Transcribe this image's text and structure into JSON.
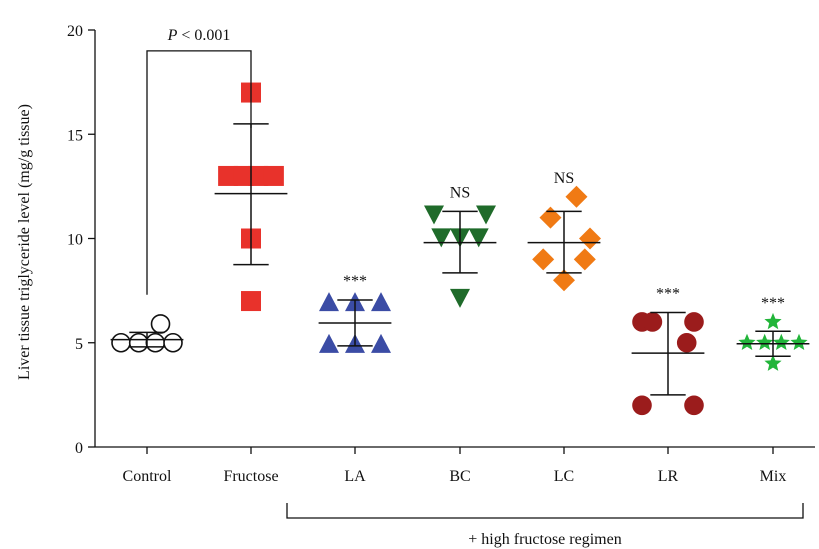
{
  "chart_data": {
    "type": "scatter",
    "ylabel": "Liver tissue triglyceride level (mg/g tissue)",
    "xlabel": "",
    "ylim": [
      0,
      20
    ],
    "yticks": [
      0,
      5,
      10,
      15,
      20
    ],
    "categories": [
      "Control",
      "Fructose",
      "LA",
      "BC",
      "LC",
      "LR",
      "Mix"
    ],
    "groups": [
      {
        "name": "Control",
        "marker": "circle",
        "color": "#ffffff",
        "stroke": "#111111",
        "points": [
          [
            -0.25,
            5.0
          ],
          [
            -0.08,
            5.0
          ],
          [
            0.08,
            5.0
          ],
          [
            0.25,
            5.0
          ],
          [
            0.13,
            5.9
          ]
        ],
        "mean": 5.15,
        "sd_low": 4.8,
        "sd_high": 5.5,
        "mean_halfwidth": 0.35,
        "sd_halfwidth": 0.17
      },
      {
        "name": "Fructose",
        "marker": "square",
        "color": "#e8322b",
        "stroke": "#e8322b",
        "points": [
          [
            0.0,
            17.0
          ],
          [
            -0.22,
            13.0
          ],
          [
            -0.07,
            13.0
          ],
          [
            0.07,
            13.0
          ],
          [
            0.22,
            13.0
          ],
          [
            0.0,
            10.0
          ],
          [
            0.0,
            7.0
          ]
        ],
        "mean": 12.15,
        "sd_low": 8.75,
        "sd_high": 15.5,
        "mean_halfwidth": 0.35,
        "sd_halfwidth": 0.17,
        "label": ""
      },
      {
        "name": "LA",
        "marker": "triangle-up",
        "color": "#3b4ca5",
        "stroke": "#3b4ca5",
        "points": [
          [
            -0.25,
            6.9
          ],
          [
            0.0,
            6.9
          ],
          [
            0.25,
            6.9
          ],
          [
            -0.25,
            4.9
          ],
          [
            0.0,
            4.9
          ],
          [
            0.25,
            4.9
          ]
        ],
        "mean": 5.95,
        "sd_low": 4.85,
        "sd_high": 7.05,
        "mean_halfwidth": 0.35,
        "sd_halfwidth": 0.17,
        "label": "***"
      },
      {
        "name": "BC",
        "marker": "triangle-down",
        "color": "#1f6b2a",
        "stroke": "#1f6b2a",
        "points": [
          [
            -0.25,
            11.2
          ],
          [
            0.25,
            11.2
          ],
          [
            -0.18,
            10.1
          ],
          [
            0.0,
            10.1
          ],
          [
            0.18,
            10.1
          ],
          [
            0.0,
            7.2
          ]
        ],
        "mean": 9.8,
        "sd_low": 8.35,
        "sd_high": 11.3,
        "mean_halfwidth": 0.35,
        "sd_halfwidth": 0.17,
        "label": "NS"
      },
      {
        "name": "LC",
        "marker": "diamond",
        "color": "#f07a14",
        "stroke": "#f07a14",
        "points": [
          [
            0.12,
            12.0
          ],
          [
            -0.13,
            11.0
          ],
          [
            0.25,
            10.0
          ],
          [
            -0.2,
            9.0
          ],
          [
            0.2,
            9.0
          ],
          [
            0.0,
            8.0
          ]
        ],
        "mean": 9.8,
        "sd_low": 8.35,
        "sd_high": 11.3,
        "mean_halfwidth": 0.35,
        "sd_halfwidth": 0.17,
        "label": "NS"
      },
      {
        "name": "LR",
        "marker": "circle",
        "color": "#9b1c1c",
        "stroke": "#9b1c1c",
        "points": [
          [
            -0.25,
            6.0
          ],
          [
            -0.15,
            6.0
          ],
          [
            0.25,
            6.0
          ],
          [
            0.18,
            5.0
          ],
          [
            -0.25,
            2.0
          ],
          [
            0.25,
            2.0
          ]
        ],
        "mean": 4.5,
        "sd_low": 2.5,
        "sd_high": 6.45,
        "mean_halfwidth": 0.35,
        "sd_halfwidth": 0.17,
        "label": "***"
      },
      {
        "name": "Mix",
        "marker": "star",
        "color": "#22b53a",
        "stroke": "#22b53a",
        "points": [
          [
            0.0,
            6.0
          ],
          [
            -0.25,
            5.0
          ],
          [
            -0.08,
            5.0
          ],
          [
            0.08,
            5.0
          ],
          [
            0.25,
            5.0
          ],
          [
            0.0,
            4.0
          ]
        ],
        "mean": 4.95,
        "sd_low": 4.35,
        "sd_high": 5.55,
        "mean_halfwidth": 0.35,
        "sd_halfwidth": 0.17,
        "label": "***"
      }
    ],
    "comparison": {
      "from": "Control",
      "to": "Fructose",
      "y_level": 19.0,
      "y_from": 7.3,
      "y_to": 15.3,
      "label_italic": "P",
      "label_rest": " < 0.001"
    },
    "regimen_bracket": {
      "from": "LA",
      "to": "Mix",
      "label": "+ high fructose regimen"
    }
  }
}
